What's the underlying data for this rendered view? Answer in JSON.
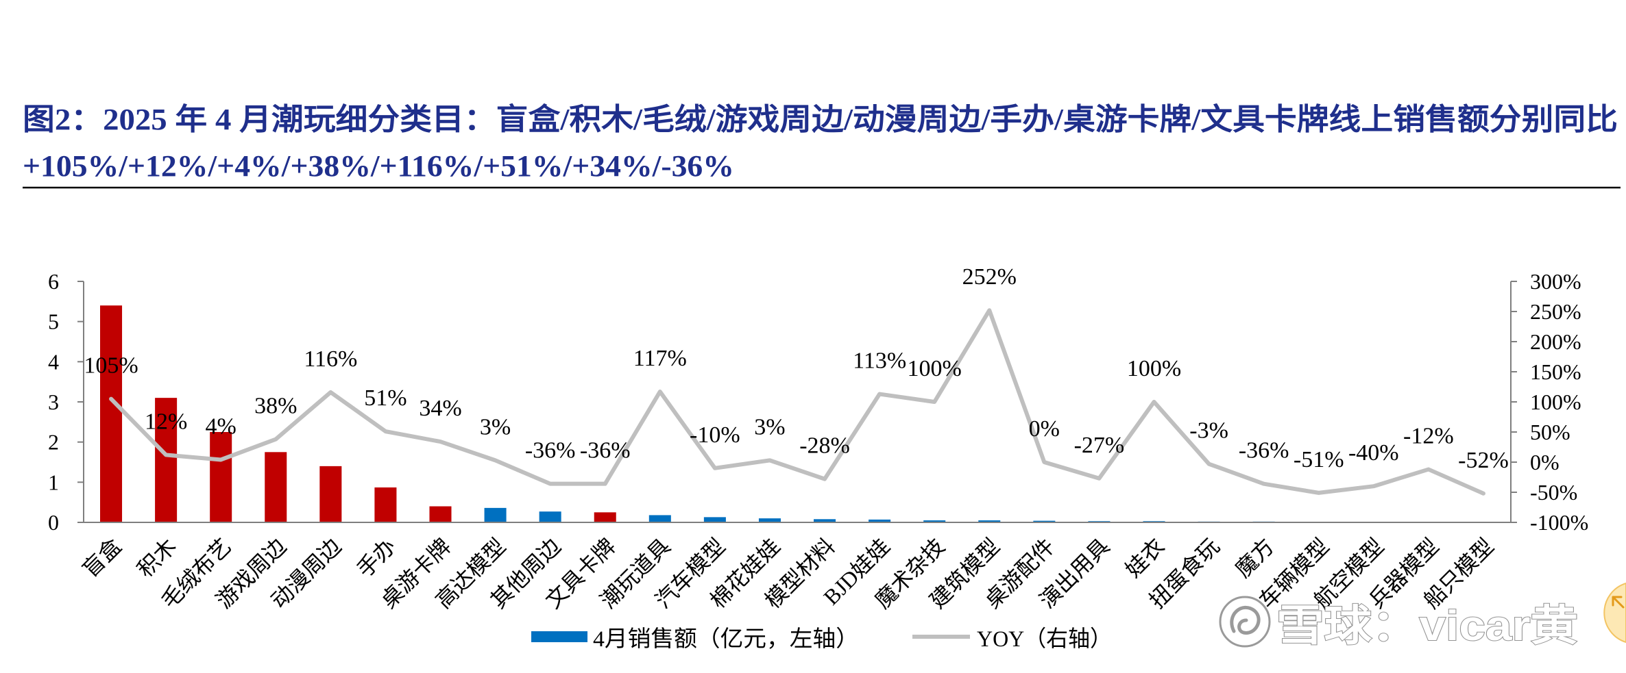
{
  "colors": {
    "title": "#1F2F8C",
    "bar": "#0070C0",
    "bar_highlight": "#C00000",
    "line": "#BFBFBF",
    "axis": "#7F7F7F"
  },
  "icons": {
    "watermark_logo": "snowball-logo-icon",
    "corner_button": "arrow-up-left-icon"
  },
  "chart_data": {
    "type": "bar",
    "title": [
      "图2：2025 年 4 月潮玩细分类目：盲盒/积木/毛绒/游戏周边/动漫周边/手办/桌游卡牌/文具卡牌线上销售额分别同比",
      "+105%/+12%/+4%/+38%/+116%/+51%/+34%/-36%"
    ],
    "categories": [
      "盲盒",
      "积木",
      "毛绒布艺",
      "游戏周边",
      "动漫周边",
      "手办",
      "桌游卡牌",
      "高达模型",
      "其他周边",
      "文具卡牌",
      "潮玩道具",
      "汽车模型",
      "棉花娃娃",
      "模型材料",
      "BJD娃娃",
      "魔术杂技",
      "建筑模型",
      "桌游配件",
      "演出用具",
      "娃衣",
      "扭蛋食玩",
      "魔方",
      "车辆模型",
      "航空模型",
      "兵器模型",
      "船只模型"
    ],
    "series": [
      {
        "name": "4月销售额（亿元，左轴）",
        "type": "bar",
        "y_axis": "left",
        "values": [
          5.4,
          3.1,
          2.25,
          1.75,
          1.4,
          0.87,
          0.4,
          0.36,
          0.27,
          0.25,
          0.18,
          0.13,
          0.1,
          0.08,
          0.07,
          0.05,
          0.05,
          0.04,
          0.03,
          0.03,
          0.02,
          0.02,
          0.01,
          0.01,
          0.01,
          0.01
        ]
      },
      {
        "name": "YOY（右轴）",
        "type": "line",
        "y_axis": "right",
        "values": [
          105,
          12,
          4,
          38,
          116,
          51,
          34,
          3,
          -36,
          -36,
          117,
          -10,
          3,
          -28,
          113,
          100,
          252,
          0,
          -27,
          100,
          -3,
          -36,
          -51,
          -40,
          -12,
          -52
        ],
        "data_labels": [
          "105%",
          "12%",
          "4%",
          "38%",
          "116%",
          "51%",
          "34%",
          "3%",
          "-36%",
          "-36%",
          "117%",
          "-10%",
          "3%",
          "-28%",
          "113%",
          "100%",
          "252%",
          "0%",
          "-27%",
          "100%",
          "-3%",
          "-36%",
          "-51%",
          "-40%",
          "-12%",
          "-52%"
        ]
      }
    ],
    "highlighted_indices": [
      0,
      1,
      2,
      3,
      4,
      5,
      6,
      9
    ],
    "ylim_left": [
      0,
      6
    ],
    "ylim_right": [
      -100,
      300
    ],
    "y_left_ticks": [
      "0",
      "1",
      "2",
      "3",
      "4",
      "5",
      "6"
    ],
    "y_right_ticks": [
      "-100%",
      "-50%",
      "0%",
      "50%",
      "100%",
      "150%",
      "200%",
      "250%",
      "300%"
    ],
    "grid": false,
    "legend_position": "bottom"
  },
  "watermark": {
    "text": "雪球：vicar黄"
  }
}
